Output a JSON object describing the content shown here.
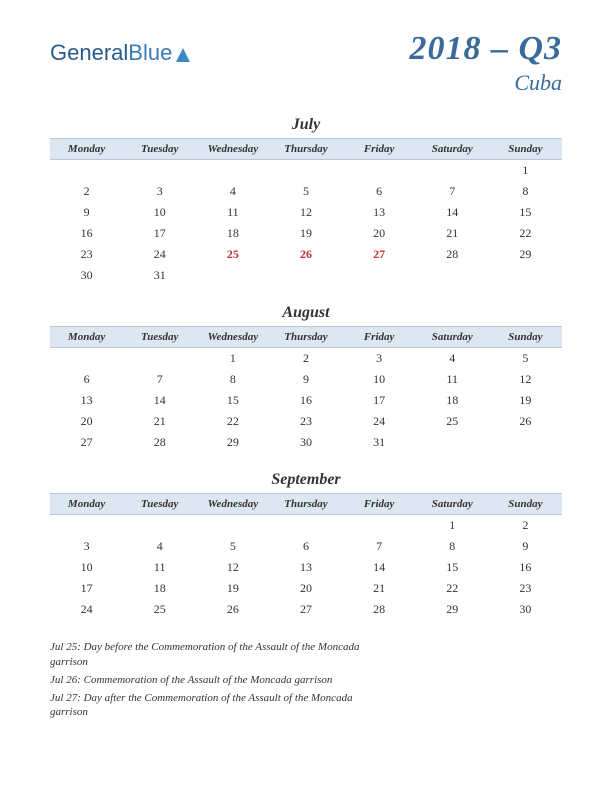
{
  "logo": {
    "part1": "General",
    "part2": "Blue"
  },
  "title": {
    "main": "2018 – Q3",
    "sub": "Cuba"
  },
  "day_headers": [
    "Monday",
    "Tuesday",
    "Wednesday",
    "Thursday",
    "Friday",
    "Saturday",
    "Sunday"
  ],
  "colors": {
    "header_bg": "#dde7f2",
    "header_border": "#b8c8db",
    "title_color": "#3a6a9a",
    "holiday_color": "#c23030",
    "text_color": "#333333",
    "background": "#ffffff"
  },
  "months": [
    {
      "name": "July",
      "weeks": [
        [
          "",
          "",
          "",
          "",
          "",
          "",
          "1"
        ],
        [
          "2",
          "3",
          "4",
          "5",
          "6",
          "7",
          "8"
        ],
        [
          "9",
          "10",
          "11",
          "12",
          "13",
          "14",
          "15"
        ],
        [
          "16",
          "17",
          "18",
          "19",
          "20",
          "21",
          "22"
        ],
        [
          "23",
          "24",
          "25",
          "26",
          "27",
          "28",
          "29"
        ],
        [
          "30",
          "31",
          "",
          "",
          "",
          "",
          ""
        ]
      ],
      "holidays": [
        "25",
        "26",
        "27"
      ]
    },
    {
      "name": "August",
      "weeks": [
        [
          "",
          "",
          "1",
          "2",
          "3",
          "4",
          "5"
        ],
        [
          "6",
          "7",
          "8",
          "9",
          "10",
          "11",
          "12"
        ],
        [
          "13",
          "14",
          "15",
          "16",
          "17",
          "18",
          "19"
        ],
        [
          "20",
          "21",
          "22",
          "23",
          "24",
          "25",
          "26"
        ],
        [
          "27",
          "28",
          "29",
          "30",
          "31",
          "",
          ""
        ]
      ],
      "holidays": []
    },
    {
      "name": "September",
      "weeks": [
        [
          "",
          "",
          "",
          "",
          "",
          "1",
          "2"
        ],
        [
          "3",
          "4",
          "5",
          "6",
          "7",
          "8",
          "9"
        ],
        [
          "10",
          "11",
          "12",
          "13",
          "14",
          "15",
          "16"
        ],
        [
          "17",
          "18",
          "19",
          "20",
          "21",
          "22",
          "23"
        ],
        [
          "24",
          "25",
          "26",
          "27",
          "28",
          "29",
          "30"
        ]
      ],
      "holidays": []
    }
  ],
  "notes": [
    "Jul 25: Day before the Commemoration of the Assault of the Moncada garrison",
    "Jul 26: Commemoration of the Assault of the Moncada garrison",
    "Jul 27: Day after the Commemoration of the Assault of the Moncada garrison"
  ]
}
